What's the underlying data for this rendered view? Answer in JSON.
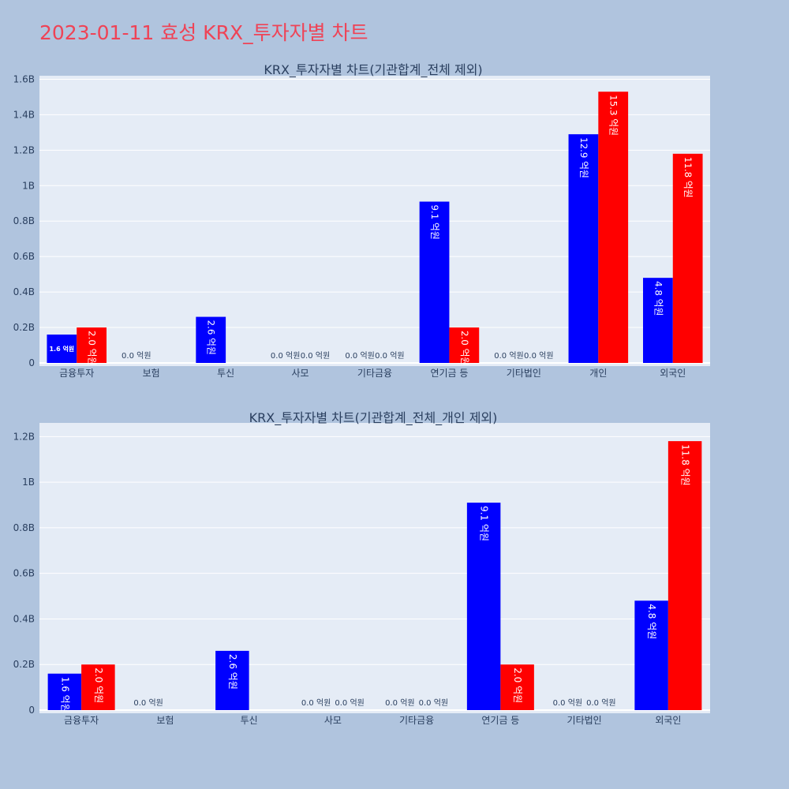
{
  "page": {
    "title": "2023-01-11 효성 KRX_투자자별 차트",
    "background": "#b0c4de",
    "title_color": "#ef4356",
    "plot_background": "#e5ecf6"
  },
  "chart_data": [
    {
      "type": "bar",
      "title": "KRX_투자자별 차트(기관합계_전체 제외)",
      "categories": [
        "금융투자",
        "보험",
        "투신",
        "사모",
        "기타금융",
        "연기금 등",
        "기타법인",
        "개인",
        "외국인"
      ],
      "ylim": [
        0,
        1.62
      ],
      "yticks": [
        0,
        0.2,
        0.4,
        0.6,
        0.8,
        1.0,
        1.2,
        1.4,
        1.6
      ],
      "ytick_labels": [
        "0",
        "0.2B",
        "0.4B",
        "0.6B",
        "0.8B",
        "1B",
        "1.2B",
        "1.4B",
        "1.6B"
      ],
      "grid": true,
      "series": [
        {
          "color": "#0000ff",
          "values": [
            0.16,
            0.0,
            0.26,
            0.0,
            0.0,
            0.91,
            0.0,
            1.29,
            0.48
          ],
          "labels": [
            "1.6 억원",
            "0.0 억원",
            "2.6 억원",
            "0.0 억원",
            "0.0 억원",
            "9.1 억원",
            "0.0 억원",
            "12.9 억원",
            "4.8 억원"
          ]
        },
        {
          "color": "#ff0000",
          "values": [
            0.2,
            0.0,
            0.0,
            0.0,
            0.0,
            0.2,
            0.0,
            1.53,
            1.18
          ],
          "labels": [
            "2.0 억원",
            "",
            "",
            "0.0 억원",
            "0.0 억원",
            "2.0 억원",
            "0.0 억원",
            "15.3 억원",
            "11.8 억원"
          ]
        }
      ]
    },
    {
      "type": "bar",
      "title": "KRX_투자자별 차트(기관합계_전체_개인 제외)",
      "categories": [
        "금융투자",
        "보험",
        "투신",
        "사모",
        "기타금융",
        "연기금 등",
        "기타법인",
        "외국인"
      ],
      "ylim": [
        0,
        1.26
      ],
      "yticks": [
        0,
        0.2,
        0.4,
        0.6,
        0.8,
        1.0,
        1.2
      ],
      "ytick_labels": [
        "0",
        "0.2B",
        "0.4B",
        "0.6B",
        "0.8B",
        "1B",
        "1.2B"
      ],
      "grid": true,
      "series": [
        {
          "color": "#0000ff",
          "values": [
            0.16,
            0.0,
            0.26,
            0.0,
            0.0,
            0.91,
            0.0,
            0.48
          ],
          "labels": [
            "1.6 억원",
            "0.0 억원",
            "2.6 억원",
            "0.0 억원",
            "0.0 억원",
            "9.1 억원",
            "0.0 억원",
            "4.8 억원"
          ]
        },
        {
          "color": "#ff0000",
          "values": [
            0.2,
            0.0,
            0.0,
            0.0,
            0.0,
            0.2,
            0.0,
            1.18
          ],
          "labels": [
            "2.0 억원",
            "",
            "",
            "0.0 억원",
            "0.0 억원",
            "2.0 억원",
            "0.0 억원",
            "11.8 억원"
          ]
        }
      ]
    }
  ]
}
